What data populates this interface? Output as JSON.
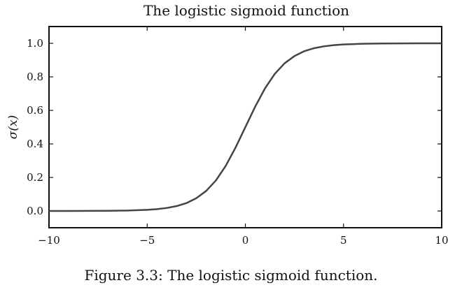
{
  "chart_data": {
    "type": "line",
    "title": "The logistic sigmoid function",
    "xlabel": "",
    "ylabel": "σ(x)",
    "xlim": [
      -10,
      10
    ],
    "ylim": [
      -0.1,
      1.1
    ],
    "xticks": [
      -10,
      -5,
      0,
      5,
      10
    ],
    "xtick_labels": [
      "−10",
      "−5",
      "0",
      "5",
      "10"
    ],
    "yticks": [
      0.0,
      0.2,
      0.4,
      0.6,
      0.8,
      1.0
    ],
    "ytick_labels": [
      "0.0",
      "0.2",
      "0.4",
      "0.6",
      "0.8",
      "1.0"
    ],
    "grid": false,
    "function": "sigmoid",
    "x": [
      -10,
      -9,
      -8,
      -7,
      -6,
      -5,
      -4.5,
      -4,
      -3.5,
      -3,
      -2.5,
      -2,
      -1.5,
      -1,
      -0.5,
      0,
      0.5,
      1,
      1.5,
      2,
      2.5,
      3,
      3.5,
      4,
      4.5,
      5,
      6,
      7,
      8,
      9,
      10
    ],
    "y": [
      5e-05,
      0.00012,
      0.00034,
      0.00091,
      0.00247,
      0.0067,
      0.011,
      0.018,
      0.029,
      0.047,
      0.076,
      0.119,
      0.182,
      0.269,
      0.378,
      0.5,
      0.622,
      0.731,
      0.818,
      0.881,
      0.924,
      0.953,
      0.971,
      0.982,
      0.989,
      0.9933,
      0.99753,
      0.99909,
      0.99966,
      0.99988,
      0.99995
    ],
    "line_color": "#444444"
  },
  "caption": "Figure 3.3:  The logistic sigmoid function."
}
